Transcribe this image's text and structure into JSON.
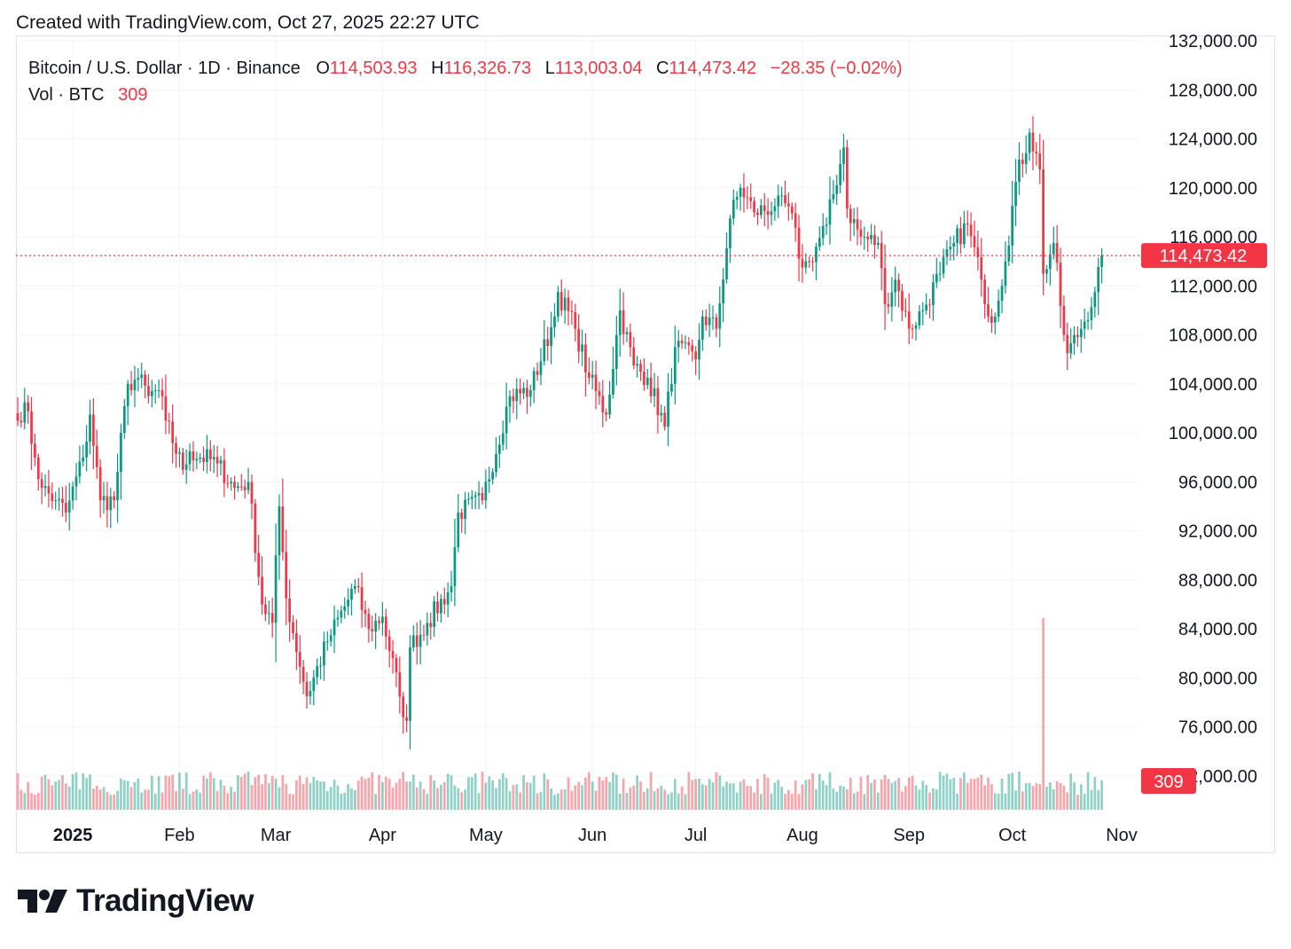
{
  "header": {
    "credit": "Created with TradingView.com, Oct 27, 2025 22:27 UTC"
  },
  "legend": {
    "symbol": "Bitcoin / U.S. Dollar · 1D · Binance",
    "o_label": "O",
    "o_value": "114,503.93",
    "h_label": "H",
    "h_value": "116,326.73",
    "l_label": "L",
    "l_value": "113,003.04",
    "c_label": "C",
    "c_value": "114,473.42",
    "change": "−28.35 (−0.02%)",
    "vol_label": "Vol · BTC",
    "vol_value": "309"
  },
  "price_scale": {
    "labels": [
      "132,000.00",
      "128,000.00",
      "124,000.00",
      "120,000.00",
      "116,000.00",
      "112,000.00",
      "108,000.00",
      "104,000.00",
      "100,000.00",
      "96,000.00",
      "92,000.00",
      "88,000.00",
      "84,000.00",
      "80,000.00",
      "76,000.00",
      "72,000.00"
    ],
    "last_price_badge": "114,473.42",
    "volume_badge": "309"
  },
  "time_scale": {
    "labels": [
      "2025",
      "Feb",
      "Mar",
      "Apr",
      "May",
      "Jun",
      "Jul",
      "Aug",
      "Sep",
      "Oct",
      "Nov"
    ]
  },
  "logo": {
    "text": "TradingView"
  },
  "colors": {
    "up": "#089981",
    "down": "#f23645",
    "grid": "#f0f3fa",
    "text": "#131722"
  },
  "chart_data": {
    "type": "candlestick",
    "title": "Bitcoin / U.S. Dollar · 1D · Binance",
    "interval": "1D",
    "ylim": [
      72000,
      132000
    ],
    "grid": true,
    "last_price": 114473.42,
    "last_volume": 309,
    "anchors": [
      {
        "date": "2024-12-16",
        "close": 101000
      },
      {
        "date": "2024-12-18",
        "close": 102500
      },
      {
        "date": "2024-12-21",
        "close": 98000
      },
      {
        "date": "2024-12-23",
        "close": 95500
      },
      {
        "date": "2024-12-27",
        "close": 94500
      },
      {
        "date": "2024-12-30",
        "close": 93500
      },
      {
        "date": "2025-01-04",
        "close": 98000
      },
      {
        "date": "2025-01-06",
        "close": 101500
      },
      {
        "date": "2025-01-09",
        "close": 94500
      },
      {
        "date": "2025-01-13",
        "close": 94500
      },
      {
        "date": "2025-01-17",
        "close": 104000
      },
      {
        "date": "2025-01-20",
        "close": 104500
      },
      {
        "date": "2025-01-23",
        "close": 103000
      },
      {
        "date": "2025-01-26",
        "close": 103500
      },
      {
        "date": "2025-01-28",
        "close": 101000
      },
      {
        "date": "2025-02-02",
        "close": 97000
      },
      {
        "date": "2025-02-04",
        "close": 98500
      },
      {
        "date": "2025-02-12",
        "close": 97500
      },
      {
        "date": "2025-02-17",
        "close": 95500
      },
      {
        "date": "2025-02-21",
        "close": 96000
      },
      {
        "date": "2025-02-25",
        "close": 86000
      },
      {
        "date": "2025-02-28",
        "close": 84500
      },
      {
        "date": "2025-03-02",
        "close": 94000
      },
      {
        "date": "2025-03-04",
        "close": 86500
      },
      {
        "date": "2025-03-10",
        "close": 78500
      },
      {
        "date": "2025-03-16",
        "close": 83000
      },
      {
        "date": "2025-03-24",
        "close": 87500
      },
      {
        "date": "2025-03-28",
        "close": 84000
      },
      {
        "date": "2025-04-01",
        "close": 85000
      },
      {
        "date": "2025-04-06",
        "close": 78500
      },
      {
        "date": "2025-04-08",
        "close": 76500
      },
      {
        "date": "2025-04-09",
        "close": 82500
      },
      {
        "date": "2025-04-14",
        "close": 84500
      },
      {
        "date": "2025-04-21",
        "close": 87500
      },
      {
        "date": "2025-04-23",
        "close": 93500
      },
      {
        "date": "2025-04-30",
        "close": 94500
      },
      {
        "date": "2025-05-08",
        "close": 103000
      },
      {
        "date": "2025-05-14",
        "close": 103500
      },
      {
        "date": "2025-05-21",
        "close": 109500
      },
      {
        "date": "2025-05-22",
        "close": 111500
      },
      {
        "date": "2025-05-27",
        "close": 108500
      },
      {
        "date": "2025-05-31",
        "close": 104500
      },
      {
        "date": "2025-06-05",
        "close": 101500
      },
      {
        "date": "2025-06-09",
        "close": 110000
      },
      {
        "date": "2025-06-13",
        "close": 105500
      },
      {
        "date": "2025-06-17",
        "close": 104500
      },
      {
        "date": "2025-06-22",
        "close": 100500
      },
      {
        "date": "2025-06-25",
        "close": 107000
      },
      {
        "date": "2025-07-01",
        "close": 106000
      },
      {
        "date": "2025-07-03",
        "close": 109500
      },
      {
        "date": "2025-07-07",
        "close": 108500
      },
      {
        "date": "2025-07-11",
        "close": 117500
      },
      {
        "date": "2025-07-14",
        "close": 120000
      },
      {
        "date": "2025-07-18",
        "close": 118000
      },
      {
        "date": "2025-07-24",
        "close": 118500
      },
      {
        "date": "2025-07-28",
        "close": 118500
      },
      {
        "date": "2025-08-01",
        "close": 113500
      },
      {
        "date": "2025-08-03",
        "close": 114000
      },
      {
        "date": "2025-08-08",
        "close": 117000
      },
      {
        "date": "2025-08-13",
        "close": 123300
      },
      {
        "date": "2025-08-14",
        "close": 118300
      },
      {
        "date": "2025-08-18",
        "close": 116000
      },
      {
        "date": "2025-08-23",
        "close": 115500
      },
      {
        "date": "2025-08-25",
        "close": 110500
      },
      {
        "date": "2025-08-28",
        "close": 112500
      },
      {
        "date": "2025-09-01",
        "close": 108500
      },
      {
        "date": "2025-09-05",
        "close": 110000
      },
      {
        "date": "2025-09-10",
        "close": 113000
      },
      {
        "date": "2025-09-14",
        "close": 115500
      },
      {
        "date": "2025-09-18",
        "close": 117000
      },
      {
        "date": "2025-09-22",
        "close": 112500
      },
      {
        "date": "2025-09-25",
        "close": 109000
      },
      {
        "date": "2025-09-29",
        "close": 114000
      },
      {
        "date": "2025-10-02",
        "close": 120500
      },
      {
        "date": "2025-10-06",
        "close": 124500
      },
      {
        "date": "2025-10-09",
        "close": 121500
      },
      {
        "date": "2025-10-10",
        "close": 113000
      },
      {
        "date": "2025-10-13",
        "close": 115500
      },
      {
        "date": "2025-10-16",
        "close": 108000
      },
      {
        "date": "2025-10-17",
        "close": 106500
      },
      {
        "date": "2025-10-21",
        "close": 108500
      },
      {
        "date": "2025-10-25",
        "close": 111500
      },
      {
        "date": "2025-10-27",
        "close": 114473
      }
    ],
    "volume_spikes": [
      {
        "date": "2025-10-10",
        "volume_relative": 4.5
      }
    ]
  }
}
